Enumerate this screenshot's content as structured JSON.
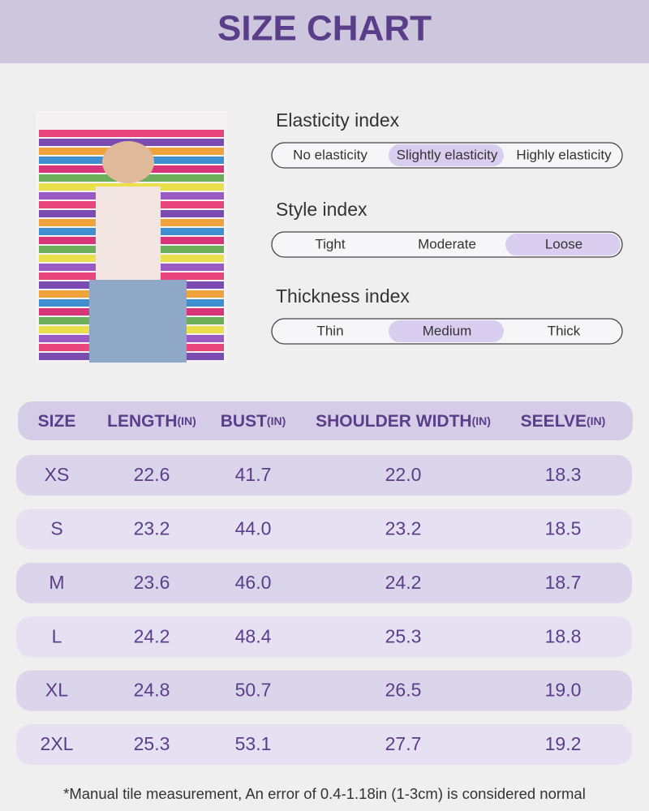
{
  "header": {
    "title": "SIZE CHART"
  },
  "indices": [
    {
      "label": "Elasticity index",
      "options": [
        "No elasticity",
        "Slightly elasticity",
        "Highly elasticity"
      ],
      "selected": 1
    },
    {
      "label": "Style index",
      "options": [
        "Tight",
        "Moderate",
        "Loose"
      ],
      "selected": 2
    },
    {
      "label": "Thickness index",
      "options": [
        "Thin",
        "Medium",
        "Thick"
      ],
      "selected": 1
    }
  ],
  "table": {
    "columns": [
      {
        "label": "SIZE"
      },
      {
        "label": "LENGTH",
        "unit": "(IN)"
      },
      {
        "label": "BUST",
        "unit": "(IN)"
      },
      {
        "label": "SHOULDER WIDTH",
        "unit": "(IN)"
      },
      {
        "label": "SEELVE",
        "unit": "(IN)"
      }
    ],
    "rows": [
      [
        "XS",
        "22.6",
        "41.7",
        "22.0",
        "18.3"
      ],
      [
        "S",
        "23.2",
        "44.0",
        "23.2",
        "18.5"
      ],
      [
        "M",
        "23.6",
        "46.0",
        "24.2",
        "18.7"
      ],
      [
        "L",
        "24.2",
        "48.4",
        "25.3",
        "18.8"
      ],
      [
        "XL",
        "24.8",
        "50.7",
        "26.5",
        "19.0"
      ],
      [
        "2XL",
        "25.3",
        "53.1",
        "27.7",
        "19.2"
      ]
    ]
  },
  "footnote": "*Manual tile measurement, An error of 0.4-1.18in (1-3cm) is considered normal"
}
